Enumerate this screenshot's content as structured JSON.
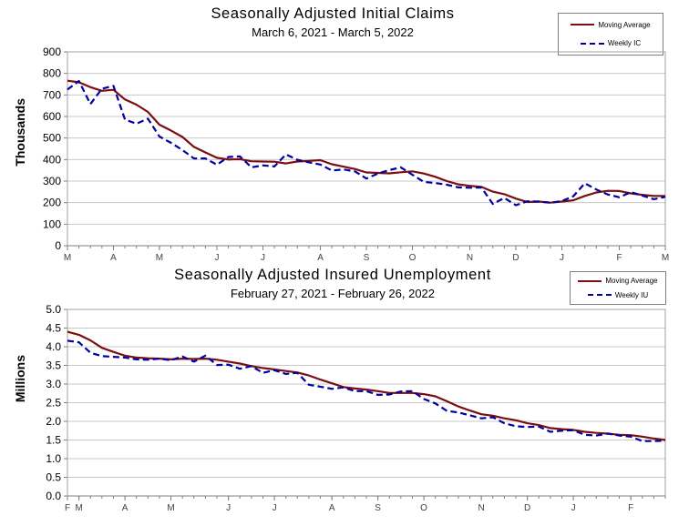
{
  "colors": {
    "moving_average": "#7a0e10",
    "weekly": "#0000a0",
    "gridline": "#c8c8c8",
    "plot_border": "#a0a0a0",
    "axis": "#7f7f7f",
    "tick_label": "#000000",
    "month_label": "#404040",
    "legend_border": "#808080",
    "background": "#ffffff"
  },
  "chart_data": [
    {
      "type": "line",
      "title": "Seasonally Adjusted Initial Claims",
      "subtitle": "March 6, 2021 - March 5, 2022",
      "ylabel": "Thousands",
      "ylim": [
        0,
        900
      ],
      "yticks": [
        "0",
        "100",
        "200",
        "300",
        "400",
        "500",
        "600",
        "700",
        "800",
        "900"
      ],
      "grid": true,
      "legend_position": "top-right",
      "weeks": 53,
      "x_month_labels": [
        {
          "label": "M",
          "week": 0
        },
        {
          "label": "A",
          "week": 4
        },
        {
          "label": "M",
          "week": 8
        },
        {
          "label": "J",
          "week": 13
        },
        {
          "label": "J",
          "week": 17
        },
        {
          "label": "A",
          "week": 22
        },
        {
          "label": "S",
          "week": 26
        },
        {
          "label": "O",
          "week": 30
        },
        {
          "label": "N",
          "week": 35
        },
        {
          "label": "D",
          "week": 39
        },
        {
          "label": "J",
          "week": 43
        },
        {
          "label": "F",
          "week": 48
        },
        {
          "label": "M",
          "week": 52
        }
      ],
      "series": [
        {
          "name": "Moving Average",
          "style": "solid",
          "color": "#7a0e10",
          "values": [
            766,
            759,
            736,
            719,
            724,
            679,
            655,
            621,
            562,
            535,
            505,
            459,
            433,
            408,
            400,
            402,
            392,
            391,
            390,
            382,
            391,
            394,
            397,
            378,
            367,
            356,
            340,
            338,
            336,
            341,
            345,
            335,
            320,
            300,
            285,
            278,
            273,
            251,
            239,
            219,
            203,
            205,
            200,
            205,
            211,
            231,
            247,
            255,
            254,
            243,
            236,
            231,
            231
          ]
        },
        {
          "name": "Weekly IC",
          "style": "dashed",
          "color": "#0000a0",
          "values": [
            725,
            765,
            658,
            729,
            742,
            586,
            566,
            590,
            507,
            478,
            444,
            405,
            405,
            376,
            412,
            415,
            364,
            373,
            368,
            424,
            399,
            387,
            377,
            349,
            354,
            345,
            312,
            335,
            351,
            364,
            329,
            296,
            291,
            283,
            271,
            269,
            270,
            194,
            222,
            188,
            206,
            205,
            200,
            207,
            230,
            290,
            261,
            238,
            225,
            249,
            233,
            216,
            227
          ]
        }
      ]
    },
    {
      "type": "line",
      "title": "Seasonally Adjusted Insured Unemployment",
      "subtitle": "February 27, 2021 - February 26, 2022",
      "ylabel": "Millions",
      "ylim": [
        0,
        5
      ],
      "yticks": [
        "0.0",
        "0.5",
        "1.0",
        "1.5",
        "2.0",
        "2.5",
        "3.0",
        "3.5",
        "4.0",
        "4.5",
        "5.0"
      ],
      "grid": true,
      "legend_position": "top-right",
      "weeks": 53,
      "x_month_labels": [
        {
          "label": "F",
          "week": 0
        },
        {
          "label": "M",
          "week": 1
        },
        {
          "label": "A",
          "week": 5
        },
        {
          "label": "M",
          "week": 9
        },
        {
          "label": "J",
          "week": 14
        },
        {
          "label": "J",
          "week": 18
        },
        {
          "label": "A",
          "week": 23
        },
        {
          "label": "S",
          "week": 27
        },
        {
          "label": "O",
          "week": 31
        },
        {
          "label": "N",
          "week": 36
        },
        {
          "label": "D",
          "week": 40
        },
        {
          "label": "J",
          "week": 44
        },
        {
          "label": "F",
          "week": 49
        }
      ],
      "series": [
        {
          "name": "Moving Average",
          "style": "solid",
          "color": "#7a0e10",
          "values": [
            4.4,
            4.32,
            4.17,
            3.97,
            3.86,
            3.76,
            3.71,
            3.69,
            3.68,
            3.66,
            3.68,
            3.67,
            3.68,
            3.65,
            3.6,
            3.55,
            3.48,
            3.43,
            3.39,
            3.35,
            3.31,
            3.23,
            3.12,
            3.02,
            2.92,
            2.88,
            2.85,
            2.81,
            2.76,
            2.76,
            2.76,
            2.73,
            2.67,
            2.54,
            2.4,
            2.29,
            2.19,
            2.15,
            2.08,
            2.03,
            1.95,
            1.9,
            1.82,
            1.79,
            1.77,
            1.72,
            1.69,
            1.67,
            1.64,
            1.63,
            1.59,
            1.54,
            1.5
          ]
        },
        {
          "name": "Weekly IU",
          "style": "dashed",
          "color": "#0000a0",
          "values": [
            4.16,
            4.12,
            3.84,
            3.75,
            3.73,
            3.71,
            3.66,
            3.65,
            3.68,
            3.64,
            3.74,
            3.6,
            3.76,
            3.51,
            3.52,
            3.41,
            3.48,
            3.3,
            3.37,
            3.27,
            3.3,
            2.98,
            2.93,
            2.87,
            2.91,
            2.81,
            2.81,
            2.71,
            2.72,
            2.8,
            2.81,
            2.6,
            2.48,
            2.28,
            2.24,
            2.16,
            2.08,
            2.11,
            1.95,
            1.87,
            1.85,
            1.86,
            1.72,
            1.75,
            1.76,
            1.64,
            1.62,
            1.67,
            1.62,
            1.59,
            1.47,
            1.47,
            1.48
          ]
        }
      ]
    }
  ]
}
